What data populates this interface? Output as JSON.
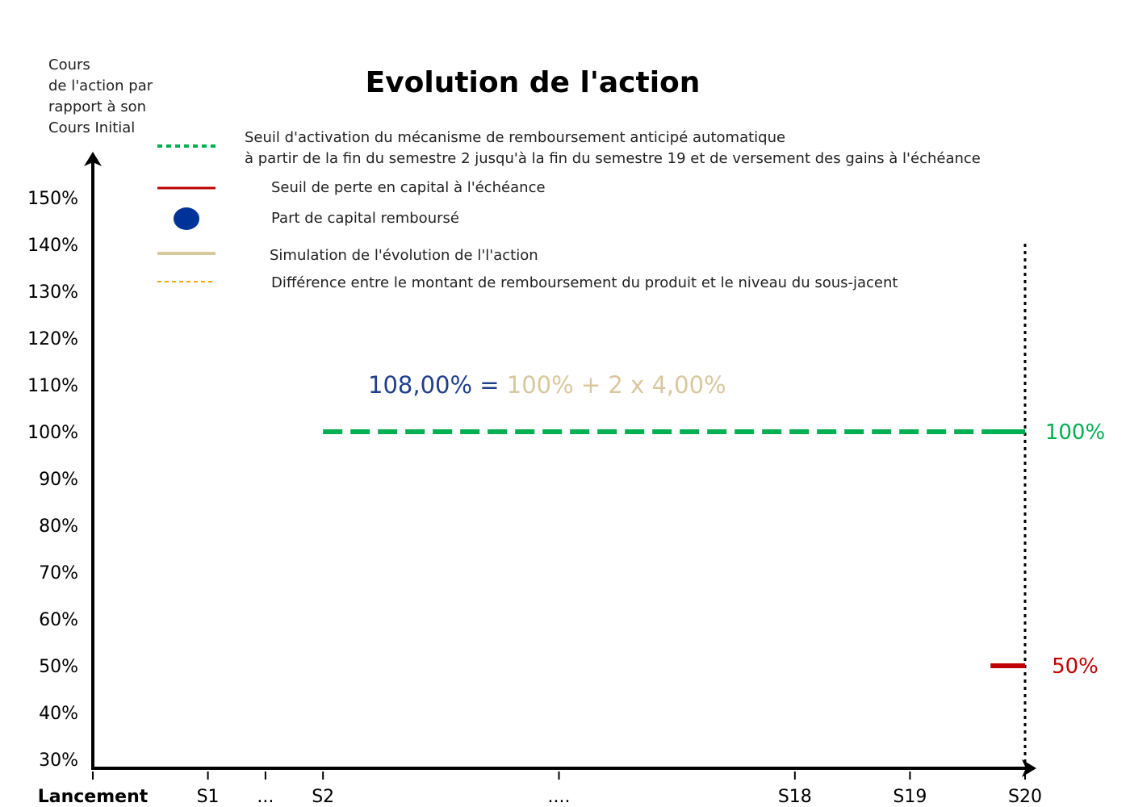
{
  "chart_data": {
    "type": "line",
    "title": "Evolution de l'action",
    "ylabel_lines": [
      "Cours",
      "de l'action par",
      "rapport à son",
      "Cours Initial"
    ],
    "y_ticks": [
      30,
      40,
      50,
      60,
      70,
      80,
      90,
      100,
      110,
      120,
      130,
      140,
      150
    ],
    "y_tick_suffix": "%",
    "ylim": [
      30,
      150
    ],
    "x_ticks": [
      {
        "pos": 0,
        "label": "Lancement"
      },
      {
        "pos": 1,
        "label": "S1"
      },
      {
        "pos": 1.5,
        "label": "..."
      },
      {
        "pos": 2,
        "label": "S2"
      },
      {
        "pos": 4.05,
        "label": "...."
      },
      {
        "pos": 6.1,
        "label": "S18"
      },
      {
        "pos": 7.1,
        "label": "S19"
      },
      {
        "pos": 8.1,
        "label": "S20"
      }
    ],
    "xlim": [
      0,
      8.1
    ],
    "maturity_x": 8.1,
    "legend": [
      {
        "key": "activation",
        "style": "green-dotted",
        "color": "#00b050",
        "lines": [
          "Seuil d'activation du mécanisme  de remboursement anticipé automatique",
          " à partir de la fin du semestre 2 jusqu'à la fin du semestre 19 et de versement des gains à l'échéance"
        ]
      },
      {
        "key": "loss",
        "style": "red-line",
        "color": "#c00000",
        "lines": [
          "Seuil de perte en capital à l'échéance"
        ]
      },
      {
        "key": "capital",
        "style": "blue-dot",
        "color": "#003399",
        "lines": [
          "Part de capital remboursé"
        ]
      },
      {
        "key": "simulation",
        "style": "tan-line",
        "color": "#d9c89e",
        "lines": [
          "Simulation de l'évolution de l'l'action"
        ]
      },
      {
        "key": "difference",
        "style": "orange-dashed",
        "color": "#f6a800",
        "lines": [
          "Différence entre le montant de remboursement du produit et le niveau du sous-jacent"
        ]
      }
    ],
    "series": [
      {
        "key": "activation",
        "color": "#00b050",
        "style": "dashed",
        "x": [
          2,
          7.8
        ],
        "y": [
          100,
          100
        ]
      },
      {
        "key": "activation-maturity",
        "color": "#00b050",
        "style": "solid",
        "x": [
          7.8,
          8.1
        ],
        "y": [
          100,
          100
        ]
      },
      {
        "key": "loss",
        "color": "#c00000",
        "style": "solid",
        "x": [
          7.8,
          8.1
        ],
        "y": [
          50,
          50
        ]
      }
    ],
    "level_labels": [
      {
        "text": "100%",
        "y": 100,
        "color": "#00b050"
      },
      {
        "text": "50%",
        "y": 50,
        "color": "#c00000"
      }
    ],
    "annotation": {
      "y": 110,
      "left_text": "108,00% = ",
      "left_color": "#1f3e8c",
      "right_text": "100% + 2 x 4,00%",
      "right_color": "#d9c89e"
    }
  }
}
